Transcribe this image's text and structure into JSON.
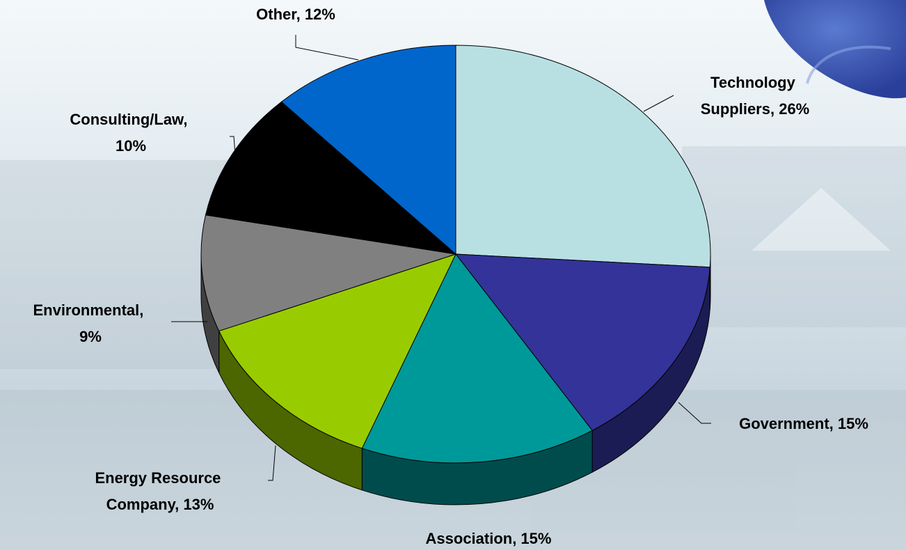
{
  "chart_data": {
    "type": "pie",
    "values": [
      26,
      15,
      15,
      13,
      9,
      10,
      12
    ],
    "value_labels": [
      "Technology Suppliers, 26%",
      "Government, 15%",
      "Association, 15%",
      "Energy Resource Company, 13%",
      "Environmental, 9%",
      "Consulting/Law, 10%",
      "Other, 12%"
    ],
    "colors": [
      "#b8e0e3",
      "#333399",
      "#009999",
      "#99cc00",
      "#808080",
      "#000000",
      "#0066cc"
    ],
    "side_colors": [
      "#6f9a9c",
      "#1c1c55",
      "#004c4c",
      "#4c6600",
      "#404040",
      "#000000",
      "#003366"
    ]
  }
}
